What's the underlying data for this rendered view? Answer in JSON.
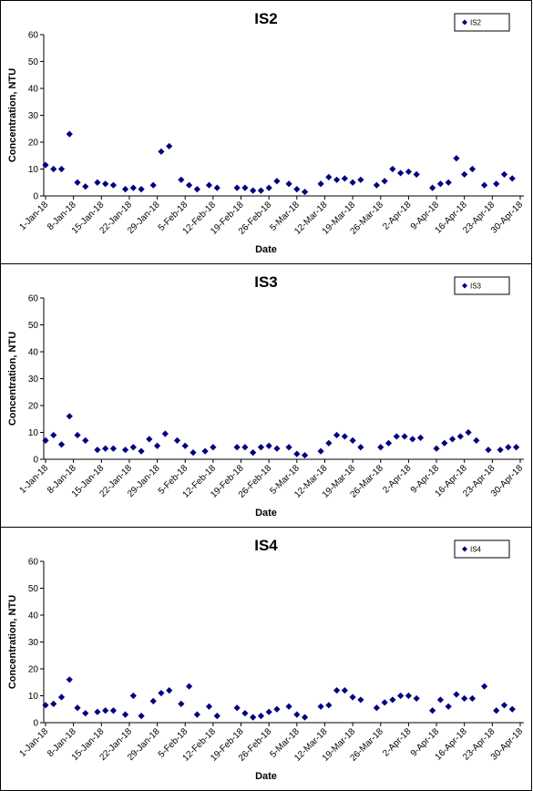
{
  "chart_data": [
    {
      "type": "scatter",
      "title": "IS2",
      "xlabel": "Date",
      "ylabel": "Concentration, NTU",
      "ylim": [
        0,
        60
      ],
      "yticks": [
        0,
        10,
        20,
        30,
        40,
        50,
        60
      ],
      "xlim": [
        "2018-01-01",
        "2018-04-30"
      ],
      "xticks": [
        "1-Jan-18",
        "8-Jan-18",
        "15-Jan-18",
        "22-Jan-18",
        "29-Jan-18",
        "5-Feb-18",
        "12-Feb-18",
        "19-Feb-18",
        "26-Feb-18",
        "5-Mar-18",
        "12-Mar-18",
        "19-Mar-18",
        "26-Mar-18",
        "2-Apr-18",
        "9-Apr-18",
        "16-Apr-18",
        "23-Apr-18",
        "30-Apr-18"
      ],
      "grid": false,
      "legend": "top-right",
      "marker_color": "#000080",
      "series": [
        {
          "name": "IS2",
          "points": [
            [
              "2018-01-01",
              11.5
            ],
            [
              "2018-01-03",
              10
            ],
            [
              "2018-01-05",
              10
            ],
            [
              "2018-01-07",
              23
            ],
            [
              "2018-01-09",
              5
            ],
            [
              "2018-01-11",
              3.5
            ],
            [
              "2018-01-14",
              5
            ],
            [
              "2018-01-16",
              4.5
            ],
            [
              "2018-01-18",
              4
            ],
            [
              "2018-01-21",
              2.5
            ],
            [
              "2018-01-23",
              3
            ],
            [
              "2018-01-25",
              2.5
            ],
            [
              "2018-01-28",
              4
            ],
            [
              "2018-01-30",
              16.5
            ],
            [
              "2018-02-01",
              18.5
            ],
            [
              "2018-02-04",
              6
            ],
            [
              "2018-02-06",
              4
            ],
            [
              "2018-02-08",
              2.5
            ],
            [
              "2018-02-11",
              4
            ],
            [
              "2018-02-13",
              3
            ],
            [
              "2018-02-18",
              3
            ],
            [
              "2018-02-20",
              3
            ],
            [
              "2018-02-22",
              2
            ],
            [
              "2018-02-24",
              2
            ],
            [
              "2018-02-26",
              3
            ],
            [
              "2018-02-28",
              5.5
            ],
            [
              "2018-03-03",
              4.5
            ],
            [
              "2018-03-05",
              2.5
            ],
            [
              "2018-03-07",
              1.5
            ],
            [
              "2018-03-11",
              4.5
            ],
            [
              "2018-03-13",
              7
            ],
            [
              "2018-03-15",
              6
            ],
            [
              "2018-03-17",
              6.5
            ],
            [
              "2018-03-19",
              5
            ],
            [
              "2018-03-21",
              6
            ],
            [
              "2018-03-25",
              4
            ],
            [
              "2018-03-27",
              5.5
            ],
            [
              "2018-03-29",
              10
            ],
            [
              "2018-03-31",
              8.5
            ],
            [
              "2018-04-02",
              9
            ],
            [
              "2018-04-04",
              8
            ],
            [
              "2018-04-08",
              3
            ],
            [
              "2018-04-10",
              4.5
            ],
            [
              "2018-04-12",
              5
            ],
            [
              "2018-04-14",
              14
            ],
            [
              "2018-04-16",
              8
            ],
            [
              "2018-04-18",
              10
            ],
            [
              "2018-04-21",
              4
            ],
            [
              "2018-04-24",
              4.5
            ],
            [
              "2018-04-26",
              8
            ],
            [
              "2018-04-28",
              6.5
            ]
          ]
        }
      ]
    },
    {
      "type": "scatter",
      "title": "IS3",
      "xlabel": "Date",
      "ylabel": "Concentration, NTU",
      "ylim": [
        0,
        60
      ],
      "yticks": [
        0,
        10,
        20,
        30,
        40,
        50,
        60
      ],
      "xlim": [
        "2018-01-01",
        "2018-04-30"
      ],
      "xticks": [
        "1-Jan-18",
        "8-Jan-18",
        "15-Jan-18",
        "22-Jan-18",
        "29-Jan-18",
        "5-Feb-18",
        "12-Feb-18",
        "19-Feb-18",
        "26-Feb-18",
        "5-Mar-18",
        "12-Mar-18",
        "19-Mar-18",
        "26-Mar-18",
        "2-Apr-18",
        "9-Apr-18",
        "16-Apr-18",
        "23-Apr-18",
        "30-Apr-18"
      ],
      "grid": false,
      "legend": "top-right",
      "marker_color": "#000080",
      "series": [
        {
          "name": "IS3",
          "points": [
            [
              "2018-01-01",
              7
            ],
            [
              "2018-01-03",
              9
            ],
            [
              "2018-01-05",
              5.5
            ],
            [
              "2018-01-07",
              16
            ],
            [
              "2018-01-09",
              9
            ],
            [
              "2018-01-11",
              7
            ],
            [
              "2018-01-14",
              3.5
            ],
            [
              "2018-01-16",
              4
            ],
            [
              "2018-01-18",
              4
            ],
            [
              "2018-01-21",
              3.5
            ],
            [
              "2018-01-23",
              4.5
            ],
            [
              "2018-01-25",
              3
            ],
            [
              "2018-01-27",
              7.5
            ],
            [
              "2018-01-29",
              5
            ],
            [
              "2018-01-31",
              9.5
            ],
            [
              "2018-02-03",
              7
            ],
            [
              "2018-02-05",
              5
            ],
            [
              "2018-02-07",
              2.5
            ],
            [
              "2018-02-10",
              3
            ],
            [
              "2018-02-12",
              4.5
            ],
            [
              "2018-02-18",
              4.5
            ],
            [
              "2018-02-20",
              4.5
            ],
            [
              "2018-02-22",
              2.5
            ],
            [
              "2018-02-24",
              4.5
            ],
            [
              "2018-02-26",
              5
            ],
            [
              "2018-02-28",
              4
            ],
            [
              "2018-03-03",
              4.5
            ],
            [
              "2018-03-05",
              2
            ],
            [
              "2018-03-07",
              1.5
            ],
            [
              "2018-03-11",
              3
            ],
            [
              "2018-03-13",
              6
            ],
            [
              "2018-03-15",
              9
            ],
            [
              "2018-03-17",
              8.5
            ],
            [
              "2018-03-19",
              7
            ],
            [
              "2018-03-21",
              4.5
            ],
            [
              "2018-03-26",
              4.5
            ],
            [
              "2018-03-28",
              6
            ],
            [
              "2018-03-30",
              8.5
            ],
            [
              "2018-04-01",
              8.5
            ],
            [
              "2018-04-03",
              7.5
            ],
            [
              "2018-04-05",
              8
            ],
            [
              "2018-04-09",
              4
            ],
            [
              "2018-04-11",
              6
            ],
            [
              "2018-04-13",
              7.5
            ],
            [
              "2018-04-15",
              8.5
            ],
            [
              "2018-04-17",
              10
            ],
            [
              "2018-04-19",
              7
            ],
            [
              "2018-04-22",
              3.5
            ],
            [
              "2018-04-25",
              3.5
            ],
            [
              "2018-04-27",
              4.5
            ],
            [
              "2018-04-29",
              4.5
            ]
          ]
        }
      ]
    },
    {
      "type": "scatter",
      "title": "IS4",
      "xlabel": "Date",
      "ylabel": "Concentration, NTU",
      "ylim": [
        0,
        60
      ],
      "yticks": [
        0,
        10,
        20,
        30,
        40,
        50,
        60
      ],
      "xlim": [
        "2018-01-01",
        "2018-04-30"
      ],
      "xticks": [
        "1-Jan-18",
        "8-Jan-18",
        "15-Jan-18",
        "22-Jan-18",
        "29-Jan-18",
        "5-Feb-18",
        "12-Feb-18",
        "19-Feb-18",
        "26-Feb-18",
        "5-Mar-18",
        "12-Mar-18",
        "19-Mar-18",
        "26-Mar-18",
        "2-Apr-18",
        "9-Apr-18",
        "16-Apr-18",
        "23-Apr-18",
        "30-Apr-18"
      ],
      "grid": false,
      "legend": "top-right",
      "marker_color": "#000080",
      "series": [
        {
          "name": "IS4",
          "points": [
            [
              "2018-01-01",
              6.5
            ],
            [
              "2018-01-03",
              7
            ],
            [
              "2018-01-05",
              9.5
            ],
            [
              "2018-01-07",
              16
            ],
            [
              "2018-01-09",
              5.5
            ],
            [
              "2018-01-11",
              3.5
            ],
            [
              "2018-01-14",
              4
            ],
            [
              "2018-01-16",
              4.5
            ],
            [
              "2018-01-18",
              4.5
            ],
            [
              "2018-01-21",
              3
            ],
            [
              "2018-01-23",
              10
            ],
            [
              "2018-01-25",
              2.5
            ],
            [
              "2018-01-28",
              8
            ],
            [
              "2018-01-30",
              11
            ],
            [
              "2018-02-01",
              12
            ],
            [
              "2018-02-04",
              7
            ],
            [
              "2018-02-06",
              13.5
            ],
            [
              "2018-02-08",
              3
            ],
            [
              "2018-02-11",
              6
            ],
            [
              "2018-02-13",
              2.5
            ],
            [
              "2018-02-18",
              5.5
            ],
            [
              "2018-02-20",
              3.5
            ],
            [
              "2018-02-22",
              2
            ],
            [
              "2018-02-24",
              2.5
            ],
            [
              "2018-02-26",
              4
            ],
            [
              "2018-02-28",
              5
            ],
            [
              "2018-03-03",
              6
            ],
            [
              "2018-03-05",
              3
            ],
            [
              "2018-03-07",
              2
            ],
            [
              "2018-03-11",
              6
            ],
            [
              "2018-03-13",
              6.5
            ],
            [
              "2018-03-15",
              12
            ],
            [
              "2018-03-17",
              12
            ],
            [
              "2018-03-19",
              9.5
            ],
            [
              "2018-03-21",
              8.5
            ],
            [
              "2018-03-25",
              5.5
            ],
            [
              "2018-03-27",
              7.5
            ],
            [
              "2018-03-29",
              8.5
            ],
            [
              "2018-03-31",
              10
            ],
            [
              "2018-04-02",
              10
            ],
            [
              "2018-04-04",
              9
            ],
            [
              "2018-04-08",
              4.5
            ],
            [
              "2018-04-10",
              8.5
            ],
            [
              "2018-04-12",
              6
            ],
            [
              "2018-04-14",
              10.5
            ],
            [
              "2018-04-16",
              9
            ],
            [
              "2018-04-18",
              9
            ],
            [
              "2018-04-21",
              13.5
            ],
            [
              "2018-04-24",
              4.5
            ],
            [
              "2018-04-26",
              6.5
            ],
            [
              "2018-04-28",
              5
            ]
          ]
        }
      ]
    }
  ]
}
